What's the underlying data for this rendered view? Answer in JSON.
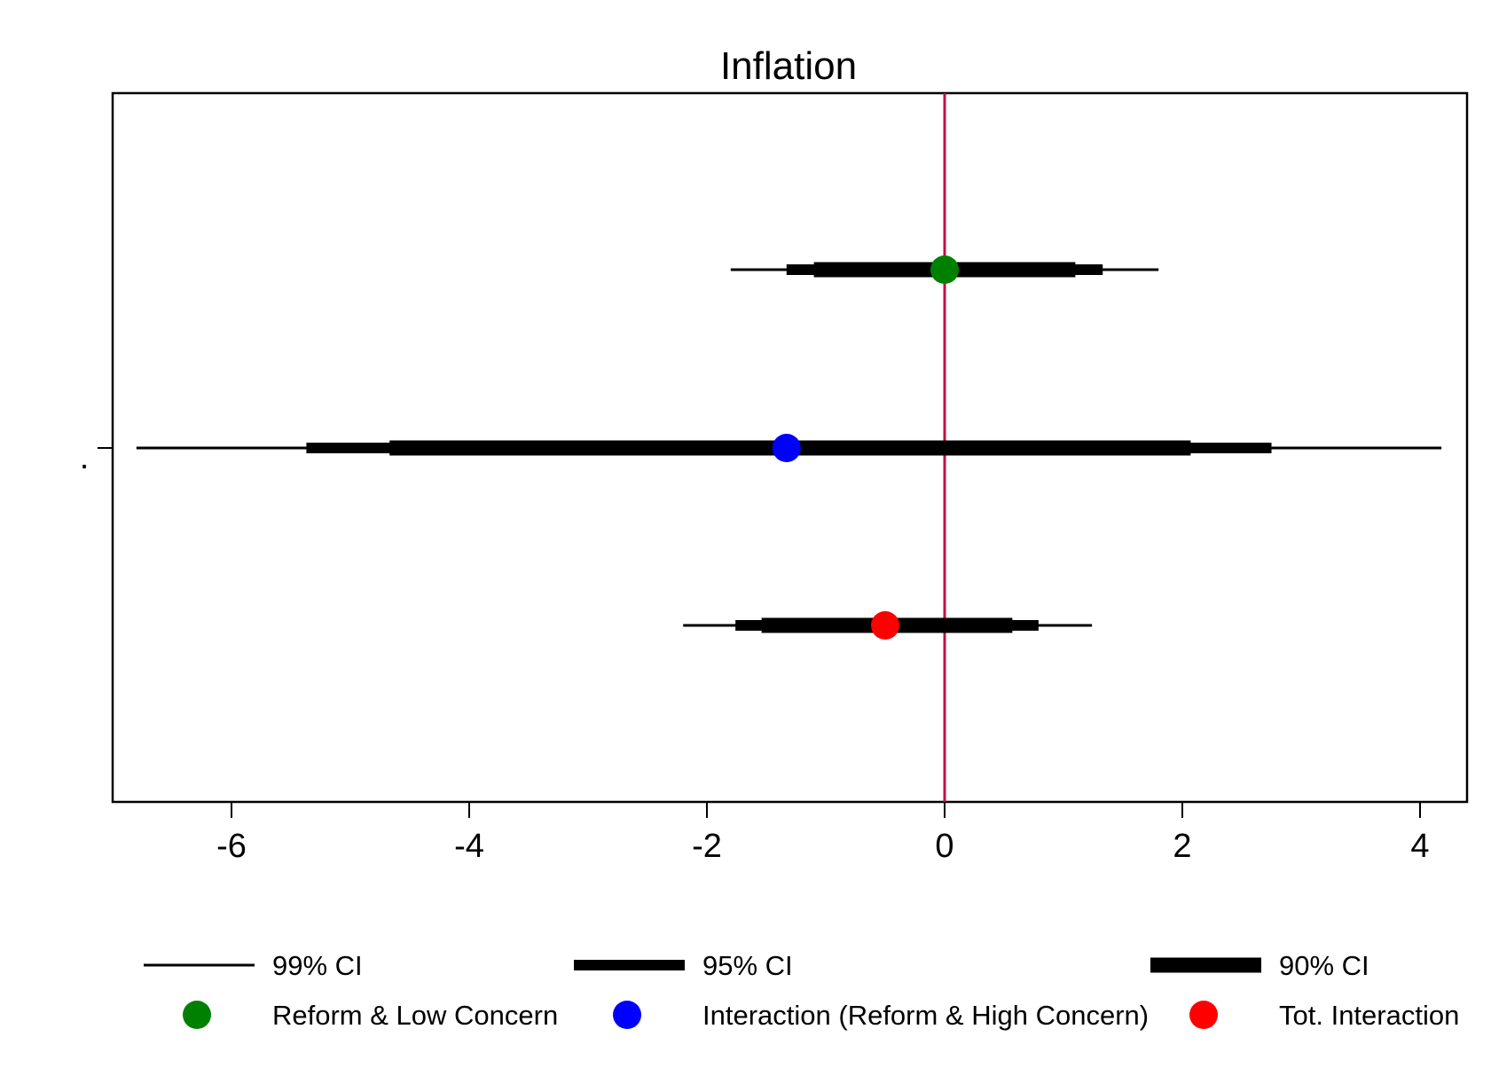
{
  "chart_data": {
    "type": "coefficient-plot",
    "title": "Inflation",
    "y_tick_label": ".",
    "xlim": [
      -7.0,
      4.2
    ],
    "x_ticks": [
      -6,
      -4,
      -2,
      0,
      2,
      4
    ],
    "x_tick_labels": [
      "-6",
      "-4",
      "-2",
      "0",
      "2",
      "4"
    ],
    "reference_line": {
      "x": 0,
      "color": "#c0103f"
    },
    "grid": false,
    "legend_position": "bottom",
    "ci_levels": [
      {
        "key": "ci99",
        "label": "99% CI"
      },
      {
        "key": "ci95",
        "label": "95% CI"
      },
      {
        "key": "ci90",
        "label": "90% CI"
      }
    ],
    "series": [
      {
        "name": "Reform & Low Concern",
        "color": "#008000",
        "estimate": 0.0,
        "ci99": [
          -1.8,
          1.8
        ],
        "ci95": [
          -1.33,
          1.33
        ],
        "ci90": [
          -1.1,
          1.1
        ]
      },
      {
        "name": "Interaction (Reform & High Concern)",
        "color": "#0000ff",
        "estimate": -1.33,
        "ci99": [
          -6.8,
          4.18
        ],
        "ci95": [
          -5.37,
          2.75
        ],
        "ci90": [
          -4.67,
          2.07
        ]
      },
      {
        "name": "Tot. Interaction",
        "color": "#ff0000",
        "estimate": -0.5,
        "ci99": [
          -2.2,
          1.24
        ],
        "ci95": [
          -1.76,
          0.79
        ],
        "ci90": [
          -1.54,
          0.57
        ]
      }
    ]
  }
}
